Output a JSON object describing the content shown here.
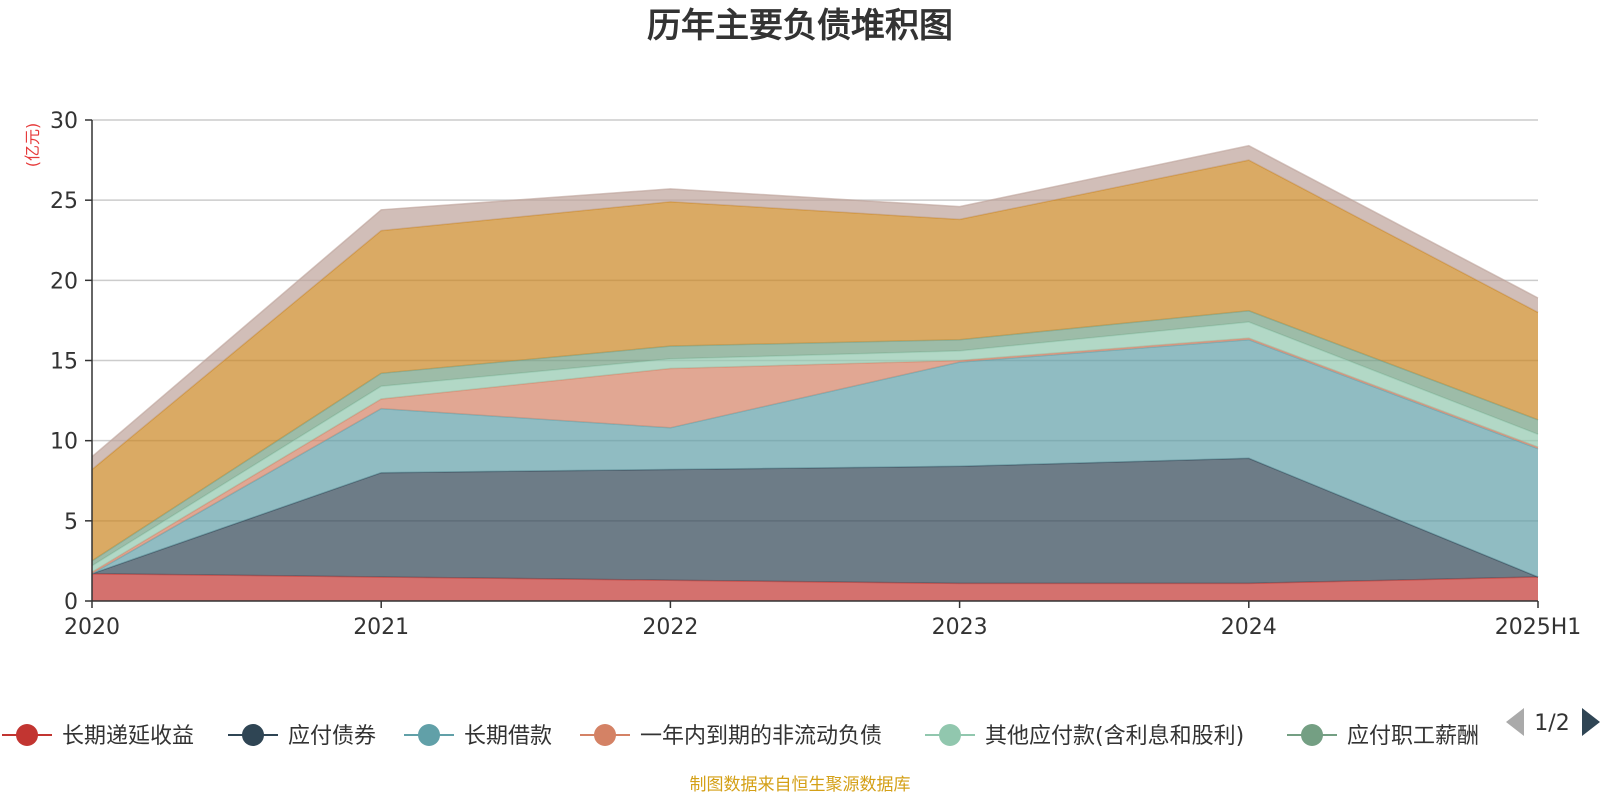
{
  "chart_data": {
    "type": "area",
    "stacked": true,
    "title": "历年主要负债堆积图",
    "unit_label": "(亿元)",
    "x": [
      "2020",
      "2021",
      "2022",
      "2023",
      "2024",
      "2025H1"
    ],
    "ylim": [
      0,
      30
    ],
    "yticks": [
      0,
      5,
      10,
      15,
      20,
      25,
      30
    ],
    "grid": true,
    "legend_position": "bottom",
    "series": [
      {
        "name": "长期递延收益",
        "color": "#c23531",
        "values": [
          1.7,
          1.5,
          1.3,
          1.1,
          1.1,
          1.5
        ]
      },
      {
        "name": "应付债券",
        "color": "#2f4554",
        "values": [
          0.0,
          6.5,
          6.9,
          7.3,
          7.8,
          0.0
        ]
      },
      {
        "name": "长期借款",
        "color": "#61a0a8",
        "values": [
          0.0,
          4.0,
          2.6,
          6.5,
          7.4,
          8.0
        ]
      },
      {
        "name": "一年内到期的非流动负债",
        "color": "#d48265",
        "values": [
          0.1,
          0.6,
          3.7,
          0.1,
          0.1,
          0.1
        ]
      },
      {
        "name": "其他应付款(含利息和股利)",
        "color": "#91c7ae",
        "values": [
          0.4,
          0.8,
          0.6,
          0.6,
          1.0,
          0.8
        ]
      },
      {
        "name": "应付职工薪酬",
        "color": "#749f83",
        "values": [
          0.3,
          0.8,
          0.8,
          0.7,
          0.7,
          0.9
        ]
      },
      {
        "name": "",
        "color": "#ca8622",
        "values": [
          5.7,
          8.9,
          9.0,
          7.5,
          9.4,
          6.7
        ]
      },
      {
        "name": "",
        "color": "#bda29a",
        "values": [
          0.8,
          1.3,
          0.8,
          0.8,
          0.9,
          0.9
        ]
      }
    ]
  },
  "legend": {
    "items": [
      "长期递延收益",
      "应付债券",
      "长期借款",
      "一年内到期的非流动负债",
      "其他应付款(含利息和股利)",
      "应付职工薪酬"
    ],
    "last_visible_text": "应付职工薪酬",
    "page_indicator": "1/2"
  },
  "footer": {
    "source": "制图数据来自恒生聚源数据库"
  }
}
